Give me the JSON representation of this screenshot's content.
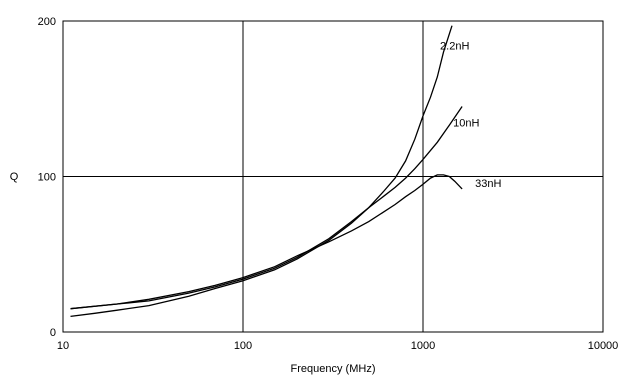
{
  "chart_data": {
    "type": "line",
    "xlabel": "Frequency (MHz)",
    "ylabel": "Q",
    "x_scale": "log",
    "xlim": [
      10,
      10000
    ],
    "ylim": [
      0,
      200
    ],
    "grid": true,
    "x_ticks": [
      10,
      100,
      1000,
      10000
    ],
    "x_tick_labels": [
      "10",
      "100",
      "1000",
      "10000"
    ],
    "y_ticks": [
      0,
      100,
      200
    ],
    "y_tick_labels": [
      "0",
      "100",
      "200"
    ],
    "series": [
      {
        "name": "2.2nH",
        "x": [
          11,
          15,
          20,
          30,
          50,
          70,
          100,
          150,
          200,
          300,
          400,
          500,
          600,
          700,
          800,
          900,
          1000,
          1100,
          1200,
          1300,
          1450
        ],
        "y": [
          10,
          12,
          14,
          17,
          23,
          28,
          33,
          40,
          47,
          59,
          70,
          80,
          90,
          99,
          110,
          124,
          139,
          151,
          164,
          180,
          197
        ]
      },
      {
        "name": "10nH",
        "x": [
          11,
          20,
          30,
          50,
          70,
          100,
          150,
          200,
          300,
          400,
          500,
          600,
          700,
          800,
          900,
          1000,
          1200,
          1400,
          1650
        ],
        "y": [
          15,
          18,
          20,
          25,
          29,
          34,
          41,
          48,
          60,
          71,
          80,
          87,
          93,
          99,
          105,
          111,
          122,
          133,
          145
        ]
      },
      {
        "name": "33nH",
        "x": [
          11,
          20,
          30,
          50,
          70,
          100,
          150,
          200,
          300,
          400,
          500,
          600,
          700,
          800,
          900,
          1000,
          1100,
          1200,
          1300,
          1400,
          1500,
          1650
        ],
        "y": [
          15,
          18,
          21,
          26,
          30,
          35,
          42,
          49,
          58,
          65,
          71,
          77,
          82,
          87,
          91,
          95,
          99,
          101,
          101,
          100,
          97,
          92
        ]
      }
    ]
  }
}
